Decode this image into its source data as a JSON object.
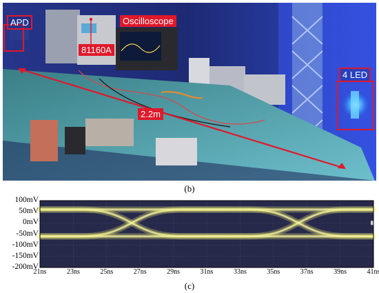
{
  "panel_b": {
    "caption": "(b)",
    "labels": {
      "apd": "APD",
      "oscilloscope": "Oscilloscope",
      "generator": "81160A",
      "distance": "2.2m",
      "led": "4 LED"
    },
    "colors": {
      "highlight_red": "#e0182a",
      "ambient_blue": "#2b3fd6"
    }
  },
  "panel_c": {
    "caption": "(c)",
    "chart_data": {
      "type": "eye-diagram",
      "y_ticks": [
        "100mV",
        "50mV",
        "0mV",
        "-50mV",
        "-100mV",
        "-150mV",
        "-200mV"
      ],
      "x_ticks": [
        "21ns",
        "23ns",
        "25ns",
        "27ns",
        "29ns",
        "31ns",
        "33ns",
        "35ns",
        "37ns",
        "39ns",
        "41ns"
      ],
      "ylim": [
        -200,
        100
      ],
      "xlim": [
        21,
        41
      ],
      "levels_mV": [
        60,
        -60
      ],
      "crossings_ns": [
        26.5,
        36.5
      ],
      "trace_color": "#f2f07a",
      "background": "#27294a",
      "grid": true
    }
  }
}
